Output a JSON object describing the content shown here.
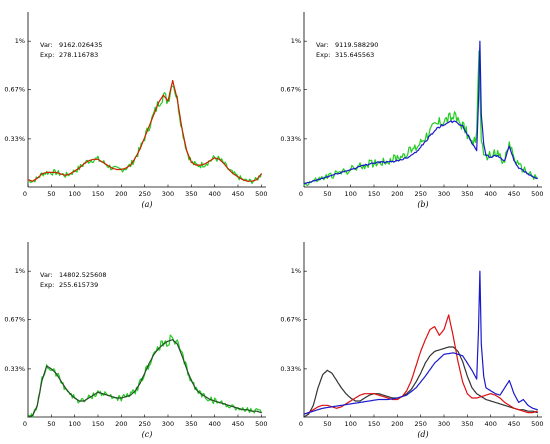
{
  "chart_data": [
    {
      "type": "line",
      "caption": "(a)",
      "ytick_labels": [
        "1%",
        "0.67%",
        "0.33%"
      ],
      "yticks": [
        1.0,
        0.67,
        0.33
      ],
      "xticks": [
        0,
        50,
        100,
        150,
        200,
        250,
        300,
        350,
        400,
        450,
        500
      ],
      "xlim": [
        0,
        510
      ],
      "ylim": [
        0,
        1.2
      ],
      "stats": [
        {
          "label": "Var:",
          "value": "9162.026435"
        },
        {
          "label": "Exp:",
          "value": "278.116783"
        }
      ],
      "series": [
        {
          "color": "#22cc22",
          "noise": 0.04,
          "x": [
            0,
            10,
            20,
            30,
            40,
            50,
            60,
            70,
            80,
            90,
            100,
            110,
            120,
            130,
            140,
            150,
            160,
            170,
            180,
            190,
            200,
            210,
            220,
            230,
            240,
            250,
            260,
            270,
            280,
            290,
            300,
            310,
            320,
            330,
            340,
            350,
            360,
            370,
            380,
            390,
            400,
            410,
            420,
            430,
            440,
            450,
            460,
            470,
            480,
            490,
            500
          ],
          "y": [
            0.05,
            0.04,
            0.06,
            0.09,
            0.1,
            0.1,
            0.1,
            0.09,
            0.08,
            0.09,
            0.11,
            0.13,
            0.16,
            0.18,
            0.19,
            0.19,
            0.17,
            0.15,
            0.13,
            0.12,
            0.12,
            0.13,
            0.15,
            0.2,
            0.26,
            0.34,
            0.42,
            0.5,
            0.58,
            0.63,
            0.59,
            0.73,
            0.6,
            0.4,
            0.25,
            0.17,
            0.15,
            0.15,
            0.16,
            0.18,
            0.2,
            0.19,
            0.16,
            0.12,
            0.09,
            0.07,
            0.05,
            0.04,
            0.04,
            0.05,
            0.09
          ]
        },
        {
          "color": "#cc2200",
          "noise": 0,
          "x": [
            0,
            10,
            20,
            30,
            40,
            50,
            60,
            70,
            80,
            90,
            100,
            110,
            120,
            130,
            140,
            150,
            160,
            170,
            180,
            190,
            200,
            210,
            220,
            230,
            240,
            250,
            260,
            270,
            280,
            290,
            300,
            310,
            320,
            330,
            340,
            350,
            360,
            370,
            380,
            390,
            400,
            410,
            420,
            430,
            440,
            450,
            460,
            470,
            480,
            490,
            500
          ],
          "y": [
            0.05,
            0.04,
            0.06,
            0.09,
            0.1,
            0.1,
            0.1,
            0.09,
            0.08,
            0.09,
            0.11,
            0.13,
            0.16,
            0.18,
            0.19,
            0.19,
            0.17,
            0.15,
            0.13,
            0.12,
            0.12,
            0.13,
            0.15,
            0.2,
            0.26,
            0.34,
            0.42,
            0.5,
            0.58,
            0.63,
            0.59,
            0.73,
            0.6,
            0.4,
            0.25,
            0.17,
            0.15,
            0.15,
            0.16,
            0.18,
            0.2,
            0.19,
            0.16,
            0.12,
            0.09,
            0.07,
            0.05,
            0.04,
            0.04,
            0.05,
            0.09
          ]
        }
      ]
    },
    {
      "type": "line",
      "caption": "(b)",
      "ytick_labels": [
        "1%",
        "0.67%",
        "0.33%"
      ],
      "yticks": [
        1.0,
        0.67,
        0.33
      ],
      "xticks": [
        0,
        50,
        100,
        150,
        200,
        250,
        300,
        350,
        400,
        450,
        500
      ],
      "xlim": [
        0,
        510
      ],
      "ylim": [
        0,
        1.2
      ],
      "stats": [
        {
          "label": "Var:",
          "value": "9119.588290"
        },
        {
          "label": "Exp:",
          "value": "315.645563"
        }
      ],
      "series": [
        {
          "color": "#22cc22",
          "noise": 0.05,
          "x": [
            0,
            20,
            40,
            60,
            80,
            100,
            120,
            140,
            160,
            180,
            200,
            220,
            240,
            260,
            280,
            300,
            320,
            340,
            360,
            370,
            375,
            380,
            385,
            390,
            400,
            410,
            420,
            430,
            440,
            450,
            460,
            470,
            480,
            490,
            500
          ],
          "y": [
            0.02,
            0.04,
            0.06,
            0.08,
            0.1,
            0.12,
            0.14,
            0.16,
            0.17,
            0.18,
            0.2,
            0.23,
            0.27,
            0.35,
            0.42,
            0.46,
            0.48,
            0.43,
            0.3,
            0.35,
            0.88,
            0.3,
            0.25,
            0.2,
            0.22,
            0.25,
            0.2,
            0.18,
            0.3,
            0.2,
            0.14,
            0.12,
            0.1,
            0.08,
            0.06
          ]
        },
        {
          "color": "#1a1acc",
          "noise": 0.01,
          "x": [
            0,
            20,
            40,
            60,
            80,
            100,
            120,
            140,
            160,
            180,
            200,
            220,
            240,
            260,
            280,
            300,
            320,
            340,
            360,
            370,
            374,
            377,
            380,
            385,
            390,
            400,
            410,
            420,
            430,
            440,
            450,
            460,
            470,
            480,
            490,
            500
          ],
          "y": [
            0.02,
            0.04,
            0.06,
            0.08,
            0.1,
            0.12,
            0.14,
            0.16,
            0.17,
            0.17,
            0.18,
            0.2,
            0.24,
            0.31,
            0.39,
            0.43,
            0.45,
            0.42,
            0.3,
            0.25,
            0.6,
            1.0,
            0.5,
            0.3,
            0.22,
            0.2,
            0.22,
            0.2,
            0.18,
            0.28,
            0.18,
            0.13,
            0.11,
            0.09,
            0.07,
            0.06
          ]
        }
      ]
    },
    {
      "type": "line",
      "caption": "(c)",
      "ytick_labels": [
        "1%",
        "0.67%",
        "0.33%"
      ],
      "yticks": [
        1.0,
        0.67,
        0.33
      ],
      "xticks": [
        0,
        50,
        100,
        150,
        200,
        250,
        300,
        350,
        400,
        450,
        500
      ],
      "xlim": [
        0,
        510
      ],
      "ylim": [
        0,
        1.2
      ],
      "stats": [
        {
          "label": "Var:",
          "value": "14802.525608"
        },
        {
          "label": "Exp:",
          "value": "255.615739"
        }
      ],
      "series": [
        {
          "color": "#22cc22",
          "noise": 0.04,
          "x": [
            0,
            10,
            20,
            30,
            40,
            50,
            60,
            70,
            80,
            90,
            100,
            110,
            120,
            130,
            140,
            150,
            160,
            170,
            180,
            190,
            200,
            210,
            220,
            230,
            240,
            250,
            260,
            270,
            280,
            290,
            300,
            310,
            320,
            330,
            340,
            350,
            360,
            370,
            380,
            390,
            400,
            410,
            420,
            430,
            440,
            450,
            460,
            470,
            480,
            490,
            500
          ],
          "y": [
            0.0,
            0.01,
            0.08,
            0.25,
            0.35,
            0.33,
            0.3,
            0.25,
            0.2,
            0.16,
            0.13,
            0.11,
            0.11,
            0.13,
            0.15,
            0.17,
            0.16,
            0.15,
            0.14,
            0.13,
            0.13,
            0.14,
            0.15,
            0.18,
            0.23,
            0.3,
            0.37,
            0.43,
            0.47,
            0.5,
            0.52,
            0.53,
            0.5,
            0.42,
            0.33,
            0.25,
            0.19,
            0.16,
            0.14,
            0.12,
            0.11,
            0.1,
            0.09,
            0.08,
            0.07,
            0.06,
            0.05,
            0.05,
            0.04,
            0.04,
            0.03
          ]
        },
        {
          "color": "#2a4a2a",
          "noise": 0,
          "x": [
            0,
            10,
            20,
            30,
            40,
            50,
            60,
            70,
            80,
            90,
            100,
            110,
            120,
            130,
            140,
            150,
            160,
            170,
            180,
            190,
            200,
            210,
            220,
            230,
            240,
            250,
            260,
            270,
            280,
            290,
            300,
            310,
            320,
            330,
            340,
            350,
            360,
            370,
            380,
            390,
            400,
            410,
            420,
            430,
            440,
            450,
            460,
            470,
            480,
            490,
            500
          ],
          "y": [
            0.0,
            0.01,
            0.08,
            0.25,
            0.35,
            0.33,
            0.3,
            0.25,
            0.2,
            0.16,
            0.13,
            0.11,
            0.11,
            0.13,
            0.15,
            0.17,
            0.16,
            0.15,
            0.14,
            0.13,
            0.13,
            0.14,
            0.15,
            0.18,
            0.23,
            0.3,
            0.37,
            0.43,
            0.47,
            0.5,
            0.52,
            0.53,
            0.5,
            0.42,
            0.33,
            0.25,
            0.19,
            0.16,
            0.14,
            0.12,
            0.11,
            0.1,
            0.09,
            0.08,
            0.07,
            0.06,
            0.05,
            0.05,
            0.04,
            0.04,
            0.03
          ]
        }
      ]
    },
    {
      "type": "line",
      "caption": "(d)",
      "ytick_labels": [
        "1%",
        "0.67%",
        "0.33%"
      ],
      "yticks": [
        1.0,
        0.67,
        0.33
      ],
      "xticks": [
        0,
        50,
        100,
        150,
        200,
        250,
        300,
        350,
        400,
        450,
        500
      ],
      "xlim": [
        0,
        510
      ],
      "ylim": [
        0,
        1.2
      ],
      "stats": [],
      "series": [
        {
          "color": "#333333",
          "noise": 0,
          "x": [
            0,
            10,
            20,
            30,
            40,
            50,
            60,
            70,
            80,
            90,
            100,
            110,
            120,
            130,
            140,
            150,
            160,
            170,
            180,
            190,
            200,
            210,
            220,
            230,
            240,
            250,
            260,
            270,
            280,
            290,
            300,
            310,
            320,
            330,
            340,
            350,
            360,
            370,
            380,
            390,
            400,
            410,
            420,
            430,
            440,
            450,
            460,
            470,
            480,
            490,
            500
          ],
          "y": [
            0.0,
            0.02,
            0.08,
            0.2,
            0.29,
            0.32,
            0.3,
            0.25,
            0.2,
            0.16,
            0.13,
            0.11,
            0.11,
            0.13,
            0.15,
            0.16,
            0.16,
            0.15,
            0.14,
            0.13,
            0.13,
            0.14,
            0.16,
            0.19,
            0.24,
            0.3,
            0.37,
            0.42,
            0.45,
            0.46,
            0.47,
            0.48,
            0.48,
            0.45,
            0.38,
            0.28,
            0.2,
            0.16,
            0.14,
            0.12,
            0.11,
            0.1,
            0.09,
            0.08,
            0.07,
            0.06,
            0.05,
            0.05,
            0.04,
            0.04,
            0.03
          ]
        },
        {
          "color": "#dd1111",
          "noise": 0,
          "x": [
            0,
            10,
            20,
            30,
            40,
            50,
            60,
            70,
            80,
            90,
            100,
            110,
            120,
            130,
            140,
            150,
            160,
            170,
            180,
            190,
            200,
            210,
            220,
            230,
            240,
            250,
            260,
            270,
            280,
            290,
            300,
            310,
            320,
            330,
            340,
            350,
            360,
            370,
            380,
            390,
            400,
            410,
            420,
            430,
            440,
            450,
            460,
            470,
            480,
            490,
            500
          ],
          "y": [
            0.02,
            0.03,
            0.05,
            0.07,
            0.08,
            0.08,
            0.07,
            0.06,
            0.07,
            0.09,
            0.11,
            0.13,
            0.15,
            0.16,
            0.16,
            0.16,
            0.15,
            0.14,
            0.13,
            0.12,
            0.12,
            0.14,
            0.18,
            0.25,
            0.35,
            0.45,
            0.53,
            0.6,
            0.62,
            0.56,
            0.6,
            0.7,
            0.55,
            0.38,
            0.24,
            0.16,
            0.13,
            0.13,
            0.14,
            0.15,
            0.16,
            0.15,
            0.13,
            0.1,
            0.08,
            0.06,
            0.05,
            0.04,
            0.03,
            0.03,
            0.04
          ]
        },
        {
          "color": "#1a1acc",
          "noise": 0,
          "x": [
            0,
            20,
            40,
            60,
            80,
            100,
            120,
            140,
            160,
            180,
            200,
            220,
            240,
            260,
            280,
            300,
            320,
            340,
            360,
            370,
            374,
            377,
            380,
            385,
            390,
            400,
            410,
            420,
            430,
            440,
            450,
            460,
            470,
            480,
            490,
            500
          ],
          "y": [
            0.02,
            0.04,
            0.06,
            0.07,
            0.08,
            0.09,
            0.1,
            0.11,
            0.12,
            0.12,
            0.13,
            0.15,
            0.2,
            0.28,
            0.37,
            0.43,
            0.44,
            0.42,
            0.32,
            0.26,
            0.6,
            1.0,
            0.5,
            0.28,
            0.2,
            0.18,
            0.16,
            0.15,
            0.2,
            0.25,
            0.16,
            0.1,
            0.12,
            0.08,
            0.06,
            0.05
          ]
        }
      ]
    }
  ]
}
